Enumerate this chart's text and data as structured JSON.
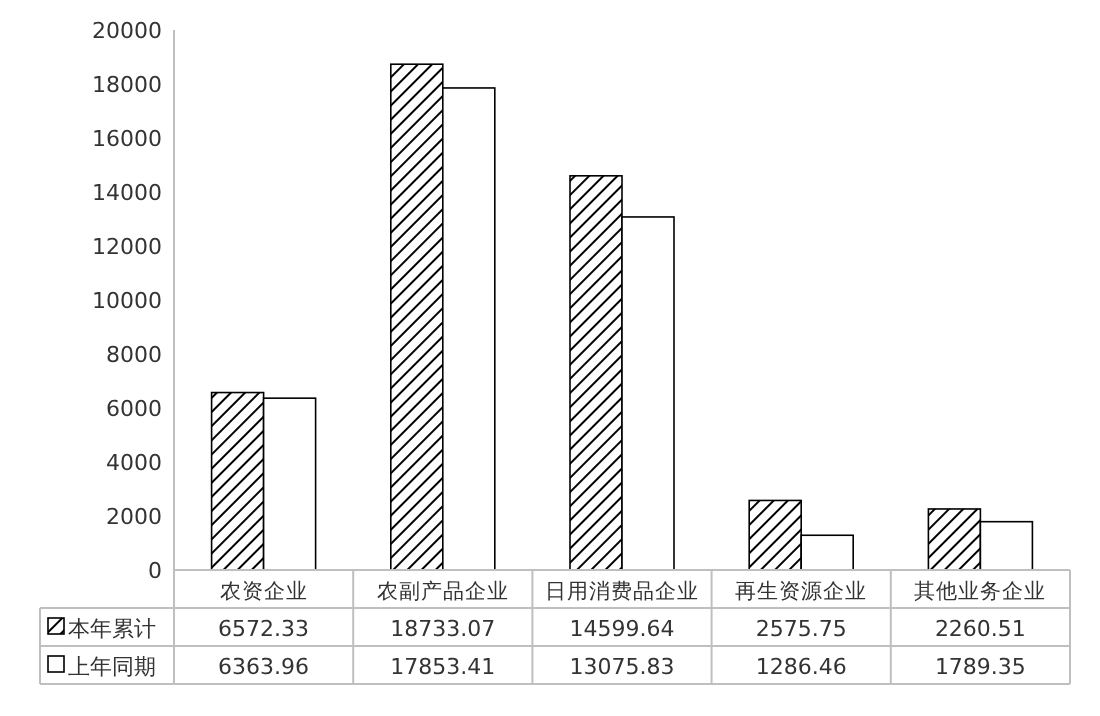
{
  "chart_data": {
    "type": "bar",
    "categories": [
      "农资企业",
      "农副产品企业",
      "日用消费品企业",
      "再生资源企业",
      "其他业务企业"
    ],
    "series": [
      {
        "name": "本年累计",
        "color": "#000000",
        "values": [
          6572.33,
          18733.07,
          14599.64,
          2575.75,
          2260.51
        ]
      },
      {
        "name": "上年同期",
        "color": "#ffffff",
        "values": [
          6363.96,
          17853.41,
          13075.83,
          1286.46,
          1789.35
        ]
      }
    ],
    "ylim": [
      0,
      20000
    ],
    "yticks": [
      0,
      2000,
      4000,
      6000,
      8000,
      10000,
      12000,
      14000,
      16000,
      18000,
      20000
    ],
    "data_labels": true,
    "legend": "bottom"
  }
}
